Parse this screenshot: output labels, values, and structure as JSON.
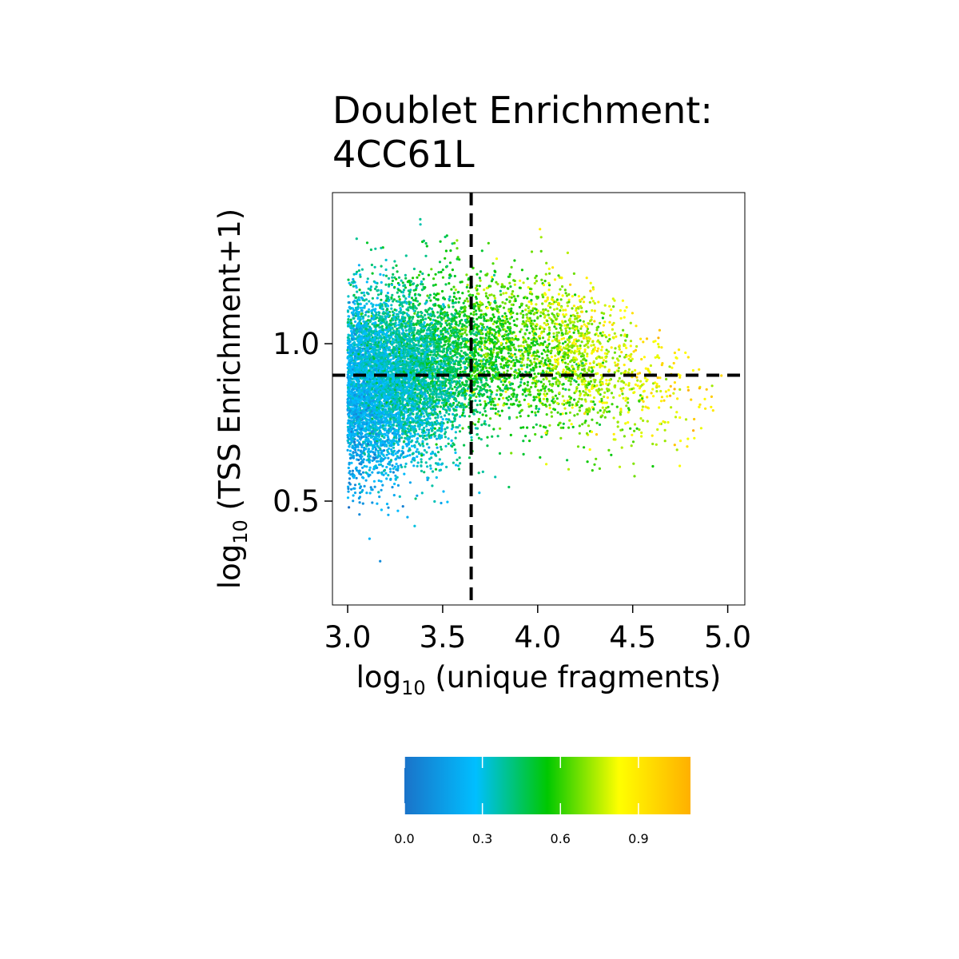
{
  "chart_data": {
    "type": "scatter",
    "title_lines": [
      "Doublet Enrichment:",
      "4CC61L"
    ],
    "xlabel": {
      "base": "log",
      "sub": "10",
      "rest": " (unique fragments)"
    },
    "ylabel": {
      "base": "log",
      "sub": "10",
      "rest": " (TSS Enrichment+1)"
    },
    "xlim": [
      2.92,
      5.09
    ],
    "ylim": [
      0.17,
      1.48
    ],
    "xticks": [
      3.0,
      3.5,
      4.0,
      4.5,
      5.0
    ],
    "xtick_labels": [
      "3.0",
      "3.5",
      "4.0",
      "4.5",
      "5.0"
    ],
    "yticks": [
      0.5,
      1.0
    ],
    "ytick_labels": [
      "0.5",
      "1.0"
    ],
    "grid": false,
    "cutoffs": {
      "x": 3.65,
      "y": 0.9
    },
    "point_cloud": {
      "n_points": 9000,
      "x_min": 3.0,
      "x_max": 4.97,
      "y_min": 0.22,
      "y_max": 1.41
    },
    "colorbar": {
      "range": [
        0.0,
        1.1
      ],
      "ticks": [
        0.0,
        0.3,
        0.6,
        0.9
      ],
      "tick_labels": [
        "0.0",
        "0.3",
        "0.6",
        "0.9"
      ],
      "placement": "bottom",
      "stops": [
        "#1a73c9",
        "#00bfff",
        "#00c800",
        "#ffff00",
        "#ffb000"
      ]
    }
  }
}
